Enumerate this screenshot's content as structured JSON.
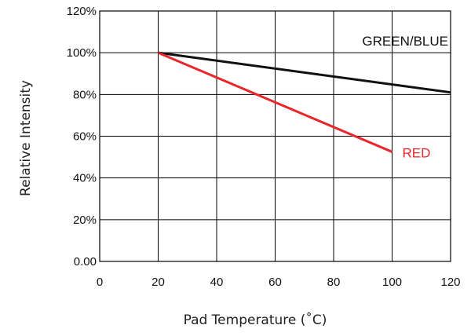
{
  "chart_data": {
    "type": "line",
    "title": "",
    "xlabel": "Pad Temperature (˚C)",
    "ylabel": "Relative Intensity",
    "xlim": [
      0,
      120
    ],
    "ylim": [
      0,
      120
    ],
    "x_ticks": [
      0,
      20,
      40,
      60,
      80,
      100,
      120
    ],
    "x_tick_labels": [
      "0",
      "20",
      "40",
      "60",
      "80",
      "100",
      "120"
    ],
    "y_ticks": [
      0,
      20,
      40,
      60,
      80,
      100,
      120
    ],
    "y_tick_labels": [
      "0.00",
      "20%",
      "40%",
      "60%",
      "80%",
      "100%",
      "120%"
    ],
    "grid": true,
    "series": [
      {
        "name": "GREEN/BLUE",
        "color": "#111111",
        "x": [
          20,
          120
        ],
        "y": [
          100,
          81
        ]
      },
      {
        "name": "RED",
        "color": "#e8262b",
        "x": [
          20,
          100
        ],
        "y": [
          100,
          52.5
        ]
      }
    ]
  }
}
